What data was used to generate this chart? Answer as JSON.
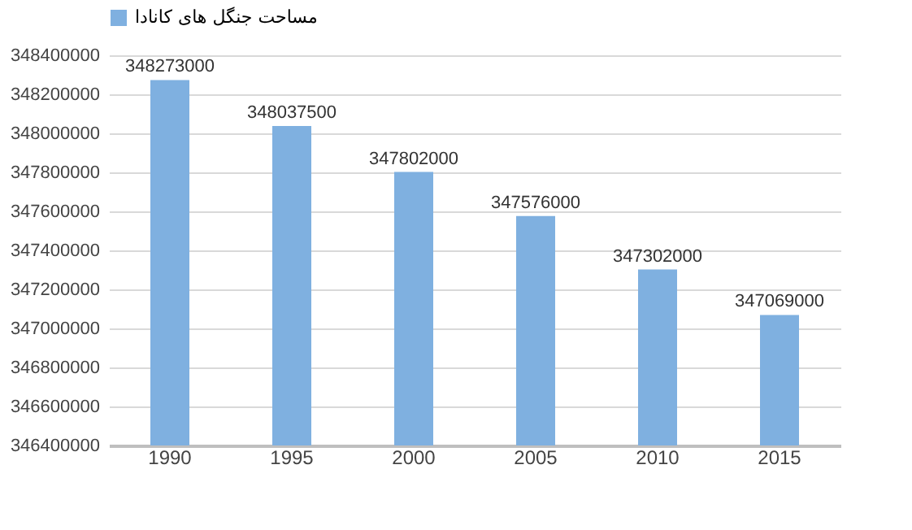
{
  "chart_data": {
    "type": "bar",
    "categories": [
      "1990",
      "1995",
      "2000",
      "2005",
      "2010",
      "2015"
    ],
    "series": [
      {
        "name": "مساحت جنگل های کانادا",
        "color": "#7fb0e0",
        "values": [
          348273000,
          348037500,
          347802000,
          347576000,
          347302000,
          347069000
        ]
      }
    ],
    "ylim": [
      346400000,
      348400000
    ],
    "yticks": [
      346400000,
      346600000,
      346800000,
      347000000,
      347200000,
      347400000,
      347600000,
      347800000,
      348000000,
      348200000,
      348400000
    ],
    "grid": "y",
    "legend": "top",
    "data_labels": true
  }
}
